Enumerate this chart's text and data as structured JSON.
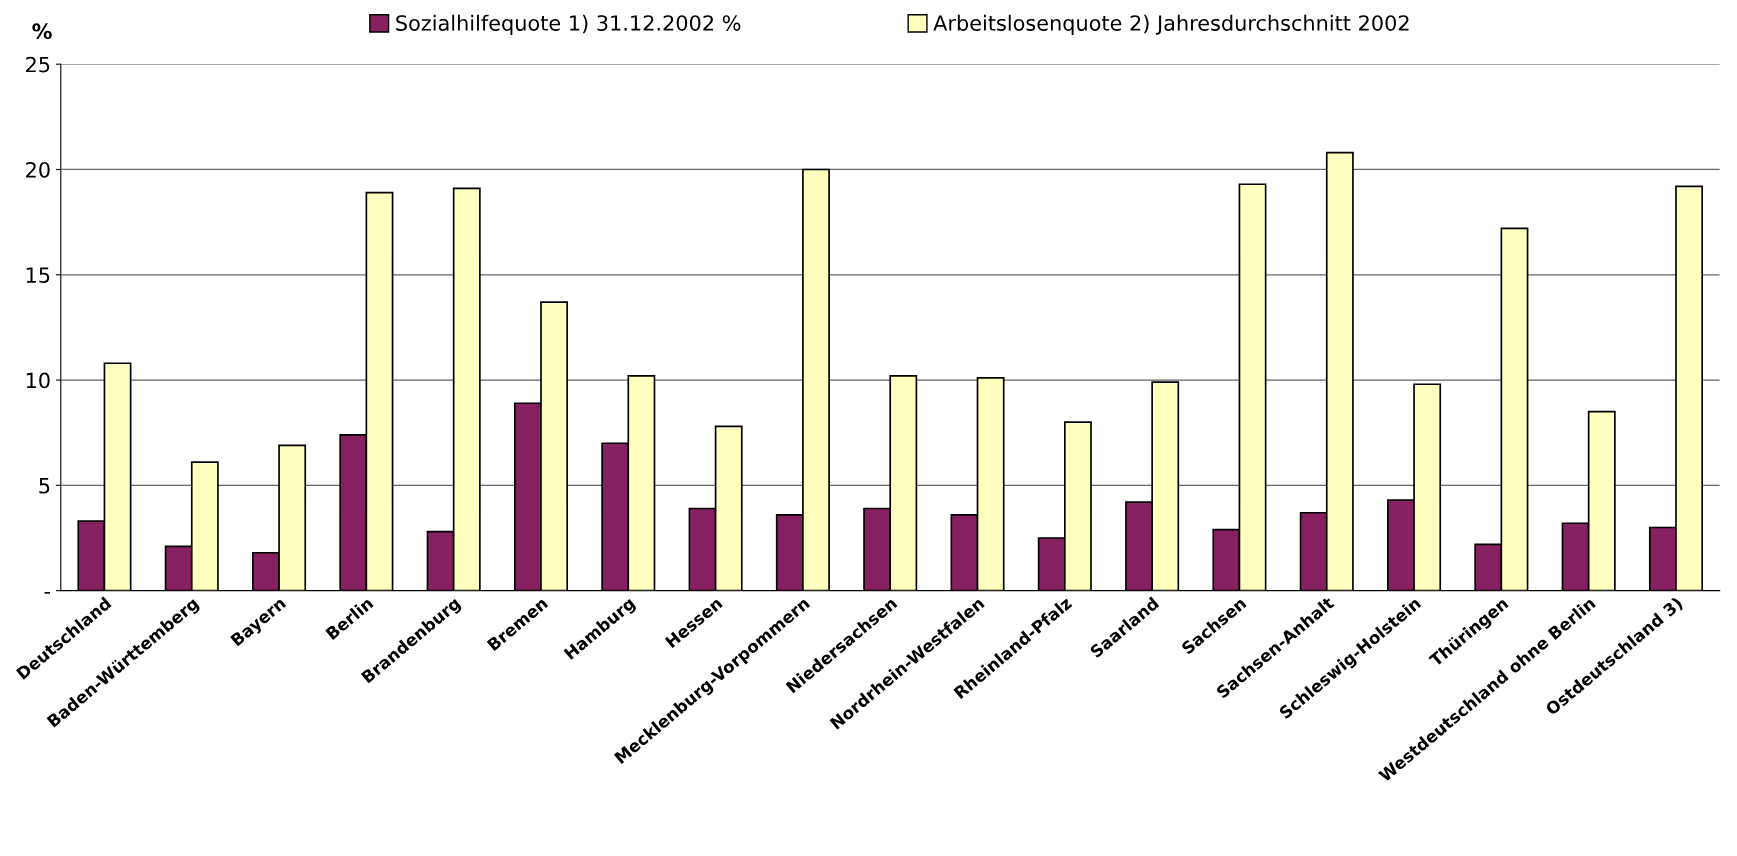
{
  "chart_data": {
    "type": "bar",
    "ylabel": "%",
    "categories": [
      "Deutschland",
      "Baden-Württemberg",
      "Bayern",
      "Berlin",
      "Brandenburg",
      "Bremen",
      "Hamburg",
      "Hessen",
      "Mecklenburg-Vorpommern",
      "Niedersachsen",
      "Nordrhein-Westfalen",
      "Rheinland-Pfalz",
      "Saarland",
      "Sachsen",
      "Sachsen-Anhalt",
      "Schleswig-Holstein",
      "Thüringen",
      "Westdeutschland ohne Berlin",
      "Ostdeutschland 3)"
    ],
    "series": [
      {
        "name": "Sozialhilfequote 1) 31.12.2002 %",
        "color": "#862060",
        "values": [
          3.3,
          2.1,
          1.8,
          7.4,
          2.8,
          8.9,
          7.0,
          3.9,
          3.6,
          3.9,
          3.6,
          2.5,
          4.2,
          2.9,
          3.7,
          4.3,
          2.2,
          3.2,
          3.0
        ]
      },
      {
        "name": "Arbeitslosenquote 2) Jahresdurchschnitt 2002",
        "color": "#ffffc0",
        "values": [
          10.8,
          6.1,
          6.9,
          18.9,
          19.1,
          13.7,
          10.2,
          7.8,
          20.0,
          10.2,
          10.1,
          8.0,
          9.9,
          19.3,
          20.8,
          9.8,
          17.2,
          8.5,
          19.2
        ]
      }
    ],
    "ylim": [
      0,
      25
    ],
    "yticks": [
      {
        "value": 0,
        "label": "-"
      },
      5,
      10,
      15,
      20,
      25
    ],
    "grid": "y",
    "legend": "top"
  }
}
